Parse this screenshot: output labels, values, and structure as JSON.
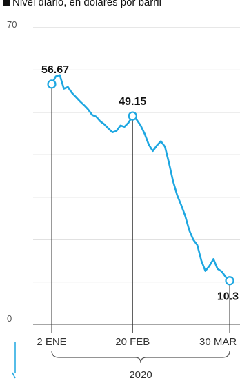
{
  "chart_data": {
    "type": "line",
    "subtitle": "Nivel diario, en dólares por barril",
    "ylim": [
      0,
      70
    ],
    "y_ticks": [
      {
        "value": 0,
        "label": "0"
      },
      {
        "value": 70,
        "label": "70"
      }
    ],
    "grid": true,
    "accent_color": "#1ea7e1",
    "series": [
      {
        "x": [
          0,
          2,
          4,
          6,
          8,
          10,
          12,
          14,
          16,
          18,
          20,
          22,
          24,
          26,
          28,
          30,
          32,
          34,
          36,
          38,
          40,
          42,
          44,
          46,
          48,
          50,
          52,
          54,
          56,
          58,
          60,
          62,
          64,
          66,
          68,
          70,
          72,
          74,
          76,
          78,
          80,
          82,
          84,
          86,
          88
        ],
        "values": [
          56.67,
          58.5,
          58.8,
          55.6,
          56.0,
          54.6,
          53.6,
          52.6,
          51.7,
          50.7,
          49.4,
          49.0,
          47.9,
          47.2,
          46.2,
          45.3,
          45.6,
          46.9,
          46.6,
          47.6,
          49.15,
          48.3,
          46.9,
          44.9,
          42.4,
          40.9,
          42.2,
          43.2,
          41.9,
          38.1,
          33.8,
          30.5,
          28.2,
          25.6,
          22.2,
          20.0,
          18.7,
          15.0,
          12.6,
          13.8,
          15.4,
          13.1,
          12.5,
          11.2,
          10.3
        ]
      }
    ],
    "x_categories": [
      {
        "x": 0,
        "label": "2 ENE"
      },
      {
        "x": 40,
        "label": "20 FEB"
      },
      {
        "x": 88,
        "label": "30 MAR"
      }
    ],
    "value_labels": [
      {
        "x": 0,
        "value": 56.67,
        "label": "56.67"
      },
      {
        "x": 40,
        "value": 49.15,
        "label": "49.15"
      },
      {
        "x": 88,
        "value": 10.3,
        "label": "10.3"
      }
    ],
    "year_label": "2020"
  }
}
